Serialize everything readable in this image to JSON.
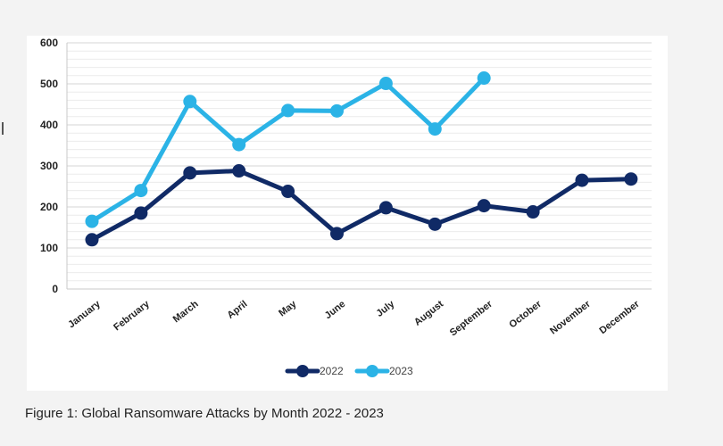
{
  "caption": "Figure 1:  Global Ransomware Attacks by Month 2022 - 2023",
  "chart_data": {
    "type": "line",
    "title": "",
    "xlabel": "",
    "ylabel": "",
    "ylim": [
      0,
      600
    ],
    "yticks": [
      0,
      100,
      200,
      300,
      400,
      500,
      600
    ],
    "grid": true,
    "legend_position": "bottom",
    "categories": [
      "January",
      "February",
      "March",
      "April",
      "May",
      "June",
      "July",
      "August",
      "September",
      "October",
      "November",
      "December"
    ],
    "series": [
      {
        "name": "2022",
        "color": "#102a66",
        "values": [
          120,
          185,
          283,
          288,
          238,
          135,
          198,
          158,
          203,
          188,
          265,
          268
        ]
      },
      {
        "name": "2023",
        "color": "#2bb3e6",
        "values": [
          165,
          240,
          457,
          352,
          435,
          434,
          501,
          390,
          514,
          null,
          null,
          null
        ]
      }
    ]
  }
}
